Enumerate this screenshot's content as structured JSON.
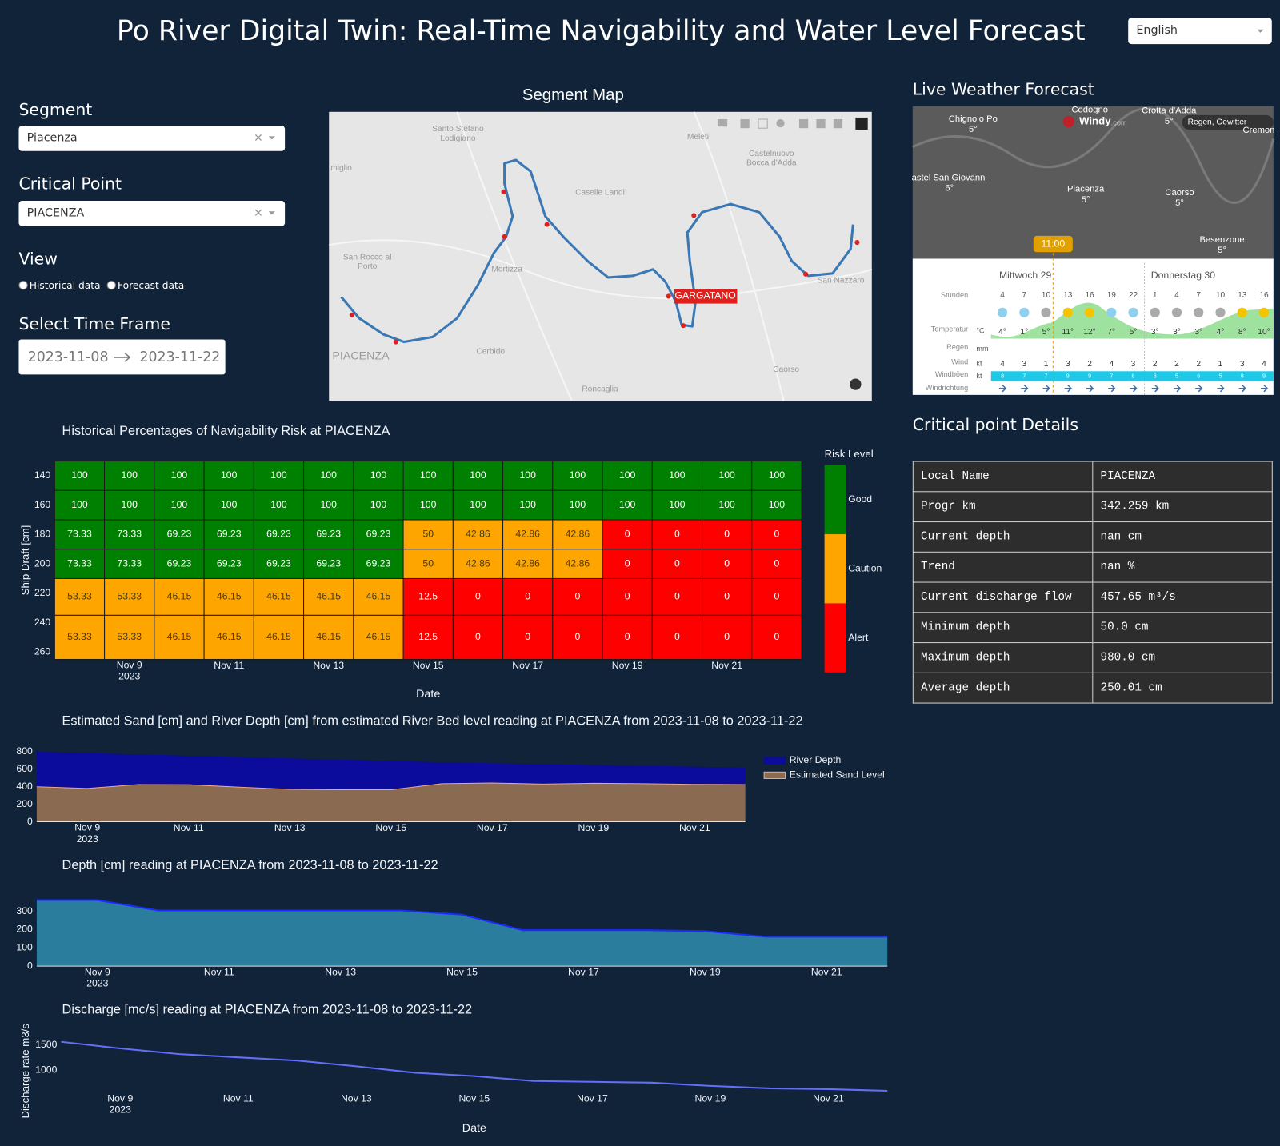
{
  "header": {
    "title": "Po River Digital Twin: Real-Time Navigability and Water Level Forecast",
    "language": "English"
  },
  "controls": {
    "segment_label": "Segment",
    "segment_value": "Piacenza",
    "critical_point_label": "Critical Point",
    "critical_point_value": "PIACENZA",
    "view_label": "View",
    "view_options": [
      "Historical data",
      "Forecast data"
    ],
    "time_frame_label": "Select Time Frame",
    "start_date": "2023-11-08",
    "end_date": "2023-11-22"
  },
  "map": {
    "title": "Segment Map",
    "marker_label": "GARGATANO",
    "places": [
      "Santo Stefano\nLodigiano",
      "Meleti",
      "Castelnuovo\nBocca d'Adda",
      "Caselle Landi",
      "San Rocco al\nPorto",
      "Mortizza",
      "PIACENZA",
      "Cerbido",
      "Roncaglia",
      "Caorso",
      "San Nazzaro",
      "miglio"
    ]
  },
  "weather": {
    "title": "Live Weather Forecast",
    "places": [
      {
        "name": "Chignolo Po",
        "temp": "5°"
      },
      {
        "name": "Codogno"
      },
      {
        "name": "Crotta d'Adda",
        "temp": "5°"
      },
      {
        "name": "Cremon"
      },
      {
        "name": "astel San Giovanni",
        "temp": "6°"
      },
      {
        "name": "Piacenza",
        "temp": "5°"
      },
      {
        "name": "Caorso",
        "temp": "5°"
      },
      {
        "name": "Besenzone",
        "temp": "5°"
      }
    ],
    "alert": "Regen, Gewitter",
    "brand": "Windy",
    "brand_suffix": ".com",
    "time": "11:00",
    "days": [
      "Mittwoch 29",
      "Donnerstag 30"
    ],
    "row_labels": [
      "Stunden",
      "Temperatur",
      "Regen",
      "Wind",
      "Windböen",
      "Windrichtung"
    ],
    "units": [
      "°C",
      "mm",
      "kt",
      "kt"
    ],
    "hours": [
      4,
      7,
      10,
      13,
      16,
      19,
      22,
      1,
      4,
      7,
      10,
      13,
      16
    ],
    "temperatures": [
      "4°",
      "1°",
      "5°",
      "11°",
      "12°",
      "7°",
      "5°",
      "3°",
      "3°",
      "3°",
      "4°",
      "8°",
      "10°"
    ],
    "wind": [
      4,
      3,
      1,
      3,
      2,
      4,
      3,
      2,
      2,
      2,
      1,
      3,
      4
    ],
    "gusts": [
      8,
      7,
      7,
      9,
      9,
      7,
      8,
      6,
      5,
      6,
      5,
      8,
      9
    ]
  },
  "details": {
    "title": "Critical point Details",
    "rows": [
      [
        "Local Name",
        "PIACENZA"
      ],
      [
        "Progr km",
        "342.259 km"
      ],
      [
        "Current depth",
        "nan cm"
      ],
      [
        "Trend",
        "nan %"
      ],
      [
        "Current discharge flow",
        "457.65 m³/s"
      ],
      [
        "Minimum depth",
        "50.0 cm"
      ],
      [
        "Maximum depth",
        "980.0 cm"
      ],
      [
        "Average depth",
        "250.01 cm"
      ]
    ]
  },
  "chart_data": [
    {
      "type": "heatmap",
      "title": "Historical Percentages of Navigability Risk at PIACENZA",
      "x_label": "Date",
      "y_label": "Ship Draft [cm]",
      "x": [
        "2023-11-08",
        "2023-11-09",
        "2023-11-10",
        "2023-11-11",
        "2023-11-12",
        "2023-11-13",
        "2023-11-14",
        "2023-11-15",
        "2023-11-16",
        "2023-11-17",
        "2023-11-18",
        "2023-11-19",
        "2023-11-20",
        "2023-11-21",
        "2023-11-22"
      ],
      "y": [
        140,
        160,
        180,
        200,
        220,
        250
      ],
      "z": [
        [
          100,
          100,
          100,
          100,
          100,
          100,
          100,
          100,
          100,
          100,
          100,
          100,
          100,
          100,
          100
        ],
        [
          100,
          100,
          100,
          100,
          100,
          100,
          100,
          100,
          100,
          100,
          100,
          100,
          100,
          100,
          100
        ],
        [
          73.33,
          73.33,
          69.23,
          69.23,
          69.23,
          69.23,
          69.23,
          50,
          42.86,
          42.86,
          42.86,
          0,
          0,
          0,
          0
        ],
        [
          73.33,
          73.33,
          69.23,
          69.23,
          69.23,
          69.23,
          69.23,
          50,
          42.86,
          42.86,
          42.86,
          0,
          0,
          0,
          0
        ],
        [
          53.33,
          53.33,
          46.15,
          46.15,
          46.15,
          46.15,
          46.15,
          12.5,
          0,
          0,
          0,
          0,
          0,
          0,
          0
        ],
        [
          53.33,
          53.33,
          46.15,
          46.15,
          46.15,
          46.15,
          46.15,
          12.5,
          0,
          0,
          0,
          0,
          0,
          0,
          0
        ]
      ],
      "ylim": [
        265,
        130
      ],
      "yticks": [
        140,
        160,
        180,
        200,
        220,
        240,
        260
      ],
      "xticks": [
        {
          "value": "2023-11-09",
          "label": "Nov 9\n2023"
        },
        {
          "value": "2023-11-11",
          "label": "Nov 11"
        },
        {
          "value": "2023-11-13",
          "label": "Nov 13"
        },
        {
          "value": "2023-11-15",
          "label": "Nov 15"
        },
        {
          "value": "2023-11-17",
          "label": "Nov 17"
        },
        {
          "value": "2023-11-19",
          "label": "Nov 19"
        },
        {
          "value": "2023-11-21",
          "label": "Nov 21"
        }
      ],
      "colorbar": {
        "title": "Risk Level",
        "zlim": [
          0,
          100
        ],
        "colors": [
          "#ff0000",
          "#ffa500",
          "#008000"
        ],
        "ticks": [
          {
            "value": 83.33,
            "label": "Good"
          },
          {
            "value": 50,
            "label": "Caution"
          },
          {
            "value": 16.67,
            "label": "Alert"
          }
        ]
      }
    },
    {
      "type": "area",
      "title": "Estimated Sand [cm] and  River Depth [cm] from estimated River Bed level reading at PIACENZA from 2023-11-08 to 2023-11-22",
      "x": [
        "2023-11-08",
        "2023-11-09",
        "2023-11-10",
        "2023-11-11",
        "2023-11-12",
        "2023-11-13",
        "2023-11-14",
        "2023-11-15",
        "2023-11-16",
        "2023-11-17",
        "2023-11-18",
        "2023-11-19",
        "2023-11-20",
        "2023-11-21",
        "2023-11-22"
      ],
      "series": [
        {
          "name": "Estimated Sand Level",
          "color": "#8a6a50",
          "line_color": "#f0a888",
          "values": [
            405,
            385,
            430,
            428,
            400,
            375,
            370,
            370,
            440,
            448,
            435,
            445,
            440,
            432,
            430
          ]
        },
        {
          "name": "River Depth",
          "color": "#0b0b9c",
          "line_color": "#0b0b9c",
          "values": [
            385,
            390,
            330,
            317,
            330,
            340,
            330,
            315,
            230,
            212,
            215,
            195,
            190,
            188,
            180
          ]
        }
      ],
      "xlim": [
        "2023-11-08",
        "2023-11-22"
      ],
      "ylim": [
        0,
        820
      ],
      "yticks": [
        0,
        200,
        400,
        600,
        800
      ],
      "xticks": [
        {
          "value": "2023-11-09",
          "label": "Nov 9\n2023"
        },
        {
          "value": "2023-11-11",
          "label": "Nov 11"
        },
        {
          "value": "2023-11-13",
          "label": "Nov 13"
        },
        {
          "value": "2023-11-15",
          "label": "Nov 15"
        },
        {
          "value": "2023-11-17",
          "label": "Nov 17"
        },
        {
          "value": "2023-11-19",
          "label": "Nov 19"
        },
        {
          "value": "2023-11-21",
          "label": "Nov 21"
        }
      ]
    },
    {
      "type": "area",
      "title": "Depth [cm] reading at PIACENZA from 2023-11-08 to 2023-11-22",
      "x": [
        "2023-11-08",
        "2023-11-09",
        "2023-11-10",
        "2023-11-11",
        "2023-11-12",
        "2023-11-13",
        "2023-11-14",
        "2023-11-15",
        "2023-11-16",
        "2023-11-17",
        "2023-11-18",
        "2023-11-19",
        "2023-11-20",
        "2023-11-21",
        "2023-11-22"
      ],
      "series": [
        {
          "color": "#2a7d9c",
          "line_color": "#1a2aff",
          "values": [
            362,
            362,
            305,
            305,
            305,
            305,
            305,
            282,
            197,
            197,
            197,
            192,
            161,
            161,
            161
          ]
        }
      ],
      "xlim": [
        "2023-11-08",
        "2023-11-22"
      ],
      "ylim": [
        0,
        380
      ],
      "yticks": [
        0,
        100,
        200,
        300
      ],
      "xticks": [
        {
          "value": "2023-11-09",
          "label": "Nov 9\n2023"
        },
        {
          "value": "2023-11-11",
          "label": "Nov 11"
        },
        {
          "value": "2023-11-13",
          "label": "Nov 13"
        },
        {
          "value": "2023-11-15",
          "label": "Nov 15"
        },
        {
          "value": "2023-11-17",
          "label": "Nov 17"
        },
        {
          "value": "2023-11-19",
          "label": "Nov 19"
        },
        {
          "value": "2023-11-21",
          "label": "Nov 21"
        }
      ]
    },
    {
      "type": "line",
      "title": "Discharge [mc/s] reading at PIACENZA from 2023-11-08 to 2023-11-22",
      "x_label": "Date",
      "y_label": "Discharge rate m3/s",
      "x": [
        "2023-11-08",
        "2023-11-09",
        "2023-11-10",
        "2023-11-11",
        "2023-11-12",
        "2023-11-13",
        "2023-11-14",
        "2023-11-15",
        "2023-11-16",
        "2023-11-17",
        "2023-11-18",
        "2023-11-19",
        "2023-11-20",
        "2023-11-21",
        "2023-11-22"
      ],
      "series": [
        {
          "color": "#636efa",
          "values": [
            1565,
            1435,
            1323,
            1258,
            1194,
            1081,
            952,
            887,
            790,
            774,
            758,
            694,
            645,
            629,
            597
          ]
        }
      ],
      "xlim": [
        "2023-11-08",
        "2023-11-22"
      ],
      "ylim": [
        560,
        1900
      ],
      "yticks": [
        1000,
        1500
      ],
      "xticks": [
        {
          "value": "2023-11-09",
          "label": "Nov 9\n2023"
        },
        {
          "value": "2023-11-11",
          "label": "Nov 11"
        },
        {
          "value": "2023-11-13",
          "label": "Nov 13"
        },
        {
          "value": "2023-11-15",
          "label": "Nov 15"
        },
        {
          "value": "2023-11-17",
          "label": "Nov 17"
        },
        {
          "value": "2023-11-19",
          "label": "Nov 19"
        },
        {
          "value": "2023-11-21",
          "label": "Nov 21"
        }
      ]
    }
  ]
}
